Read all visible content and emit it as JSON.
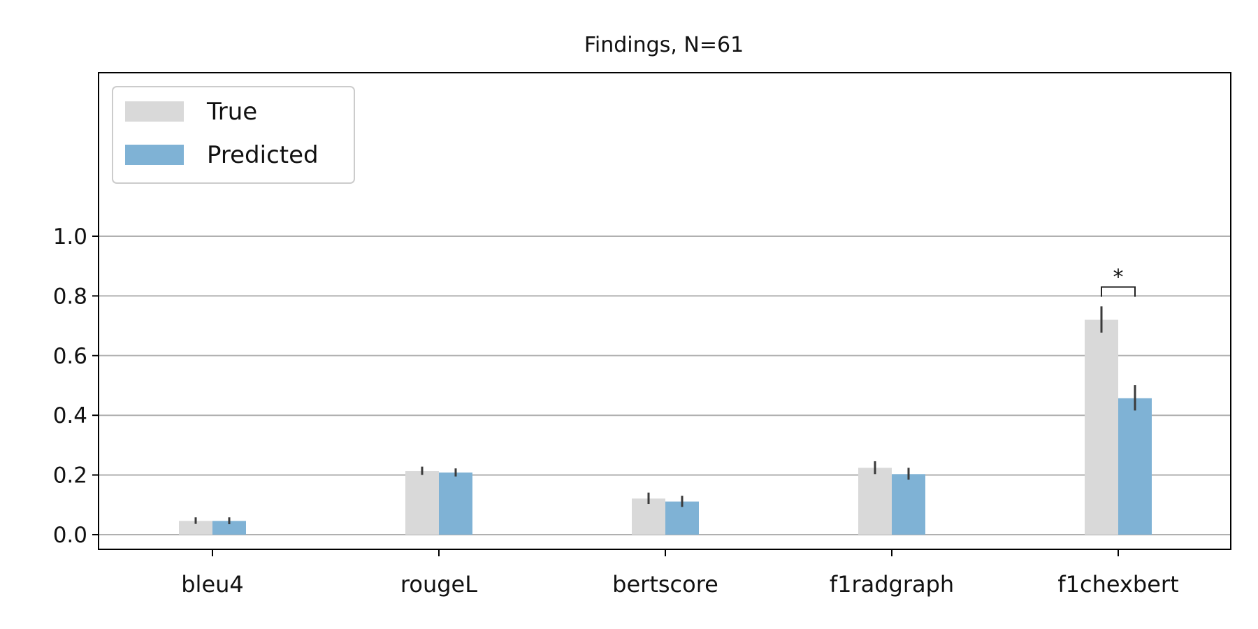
{
  "chart_data": {
    "type": "bar",
    "title": "Findings, N=61",
    "xlabel": "",
    "ylabel": "",
    "categories": [
      "bleu4",
      "rougeL",
      "bertscore",
      "f1radgraph",
      "f1chexbert"
    ],
    "series": [
      {
        "name": "True",
        "color": "#d9d9d9",
        "values": [
          0.046,
          0.213,
          0.121,
          0.224,
          0.72
        ],
        "err_low": [
          0.036,
          0.2,
          0.103,
          0.203,
          0.677
        ],
        "err_high": [
          0.058,
          0.228,
          0.141,
          0.246,
          0.765
        ]
      },
      {
        "name": "Predicted",
        "color": "#7fb2d5",
        "values": [
          0.046,
          0.208,
          0.111,
          0.203,
          0.457
        ],
        "err_low": [
          0.035,
          0.195,
          0.093,
          0.184,
          0.416
        ],
        "err_high": [
          0.058,
          0.222,
          0.13,
          0.224,
          0.501
        ]
      }
    ],
    "yticks": [
      "0.0",
      "0.2",
      "0.4",
      "0.6",
      "0.8",
      "1.0"
    ],
    "ylim": [
      -0.05,
      1.55
    ],
    "grid": "horizontal",
    "legend": "top-left",
    "annotations": [
      {
        "category": "f1chexbert",
        "text": "*",
        "bracket_y": 0.83
      }
    ]
  }
}
